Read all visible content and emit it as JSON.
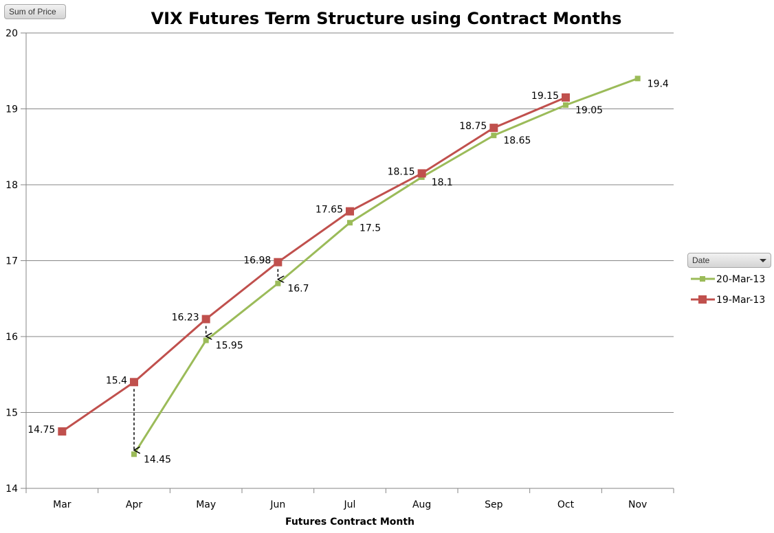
{
  "buttons": {
    "sum_of_price": "Sum of Price",
    "date_filter": "Date"
  },
  "chart_data": {
    "type": "line",
    "title": "VIX Futures Term Structure using Contract Months",
    "xlabel": "Futures Contract Month",
    "ylabel": "",
    "categories": [
      "Mar",
      "Apr",
      "May",
      "Jun",
      "Jul",
      "Aug",
      "Sep",
      "Oct",
      "Nov"
    ],
    "ylim": [
      14,
      20
    ],
    "yticks": [
      14,
      15,
      16,
      17,
      18,
      19,
      20
    ],
    "grid": true,
    "legend_placement": "right",
    "legend_title": "Date",
    "series": [
      {
        "name": "20-Mar-13",
        "color": "#9BBB59",
        "values": [
          null,
          14.45,
          15.95,
          16.7,
          17.5,
          18.1,
          18.65,
          19.05,
          19.4
        ]
      },
      {
        "name": "19-Mar-13",
        "color": "#C0504D",
        "values": [
          14.75,
          15.4,
          16.23,
          16.98,
          17.65,
          18.15,
          18.75,
          19.15,
          null
        ]
      }
    ],
    "annotations": [
      {
        "type": "dashed-arrow",
        "category": "Apr",
        "from": 15.4,
        "to": 14.45
      },
      {
        "type": "dashed-arrow",
        "category": "May",
        "from": 16.23,
        "to": 15.95
      },
      {
        "type": "dashed-arrow",
        "category": "Jun",
        "from": 16.98,
        "to": 16.7
      }
    ]
  }
}
